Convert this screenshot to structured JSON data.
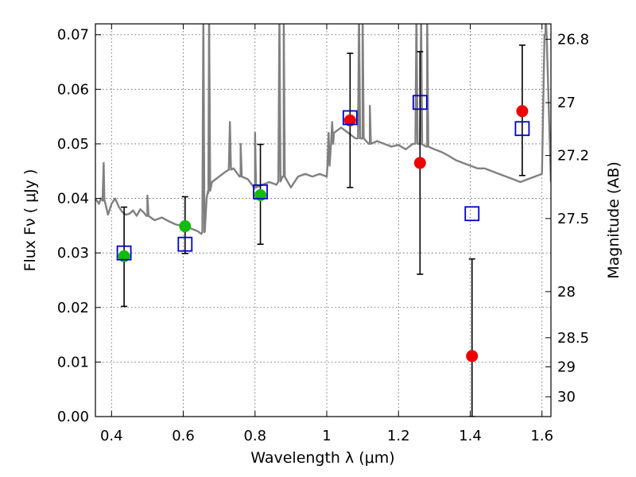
{
  "chart_data": {
    "type": "scatter",
    "xlabel": "Wavelength  λ (μm)",
    "ylabel": "Flux  Fν  ( μJy )",
    "ylabel_right": "Magnitude (AB)",
    "xlim": [
      0.355,
      1.625
    ],
    "ylim": [
      0.0,
      0.072
    ],
    "x_ticks": [
      0.4,
      0.6,
      0.8,
      1.0,
      1.2,
      1.4,
      1.6
    ],
    "x_tick_labels": [
      "0.4",
      "0.6",
      "0.8",
      "1",
      "1.2",
      "1.4",
      "1.6"
    ],
    "y_ticks": [
      0.0,
      0.01,
      0.02,
      0.03,
      0.04,
      0.05,
      0.06,
      0.07
    ],
    "y_tick_labels": [
      "0.00",
      "0.01",
      "0.02",
      "0.03",
      "0.04",
      "0.05",
      "0.06",
      "0.07"
    ],
    "right_ticks": [
      26.8,
      27,
      27.2,
      27.5,
      28,
      28.5,
      29,
      30
    ],
    "right_tick_labels": [
      "26.8",
      "27",
      "27.2",
      "27.5",
      "28",
      "28.5",
      "29",
      "30"
    ],
    "grid": true,
    "colors": {
      "model_line": "#808080",
      "green_points": "#11bb11",
      "red_points": "#ee0000",
      "open_squares": "#0000cc",
      "error_bars": "#000000"
    },
    "model_spectrum": {
      "x": [
        0.355,
        0.365,
        0.37,
        0.38,
        0.39,
        0.4,
        0.41,
        0.42,
        0.43,
        0.44,
        0.45,
        0.46,
        0.47,
        0.48,
        0.49,
        0.5,
        0.52,
        0.54,
        0.56,
        0.58,
        0.6,
        0.62,
        0.64,
        0.65,
        0.66,
        0.665,
        0.67,
        0.68,
        0.7,
        0.72,
        0.74,
        0.76,
        0.78,
        0.8,
        0.82,
        0.84,
        0.86,
        0.88,
        0.9,
        0.92,
        0.94,
        0.96,
        0.98,
        1.0,
        1.02,
        1.04,
        1.06,
        1.08,
        1.1,
        1.12,
        1.14,
        1.16,
        1.18,
        1.2,
        1.22,
        1.24,
        1.26,
        1.28,
        1.3,
        1.32,
        1.34,
        1.36,
        1.38,
        1.4,
        1.42,
        1.44,
        1.46,
        1.48,
        1.5,
        1.52,
        1.54,
        1.56,
        1.58,
        1.6,
        1.61,
        1.625
      ],
      "y": [
        0.04,
        0.039,
        0.04,
        0.0395,
        0.037,
        0.039,
        0.04,
        0.0385,
        0.0375,
        0.037,
        0.0372,
        0.0378,
        0.0368,
        0.038,
        0.0374,
        0.0368,
        0.036,
        0.0365,
        0.0358,
        0.0352,
        0.035,
        0.0345,
        0.034,
        0.0335,
        0.034,
        0.04,
        0.041,
        0.043,
        0.044,
        0.045,
        0.0455,
        0.044,
        0.0435,
        0.042,
        0.0425,
        0.043,
        0.0425,
        0.044,
        0.042,
        0.044,
        0.0445,
        0.044,
        0.0445,
        0.044,
        0.052,
        0.053,
        0.052,
        0.051,
        0.051,
        0.05,
        0.0505,
        0.05,
        0.0495,
        0.0498,
        0.049,
        0.05,
        0.05,
        0.0495,
        0.049,
        0.0485,
        0.0478,
        0.047,
        0.0465,
        0.046,
        0.0455,
        0.0455,
        0.045,
        0.0445,
        0.044,
        0.0435,
        0.043,
        0.0435,
        0.044,
        0.0445,
        0.07,
        0.043
      ]
    },
    "model_lines": [
      {
        "x": 0.378,
        "peak": 0.0465
      },
      {
        "x": 0.5,
        "peak": 0.0405
      },
      {
        "x": 0.656,
        "peak": 0.074
      },
      {
        "x": 0.672,
        "peak": 0.074
      },
      {
        "x": 0.73,
        "peak": 0.054
      },
      {
        "x": 0.76,
        "peak": 0.05
      },
      {
        "x": 0.8,
        "peak": 0.052
      },
      {
        "x": 0.868,
        "peak": 0.074
      },
      {
        "x": 0.88,
        "peak": 0.074
      },
      {
        "x": 1.005,
        "peak": 0.052
      },
      {
        "x": 1.015,
        "peak": 0.054
      },
      {
        "x": 1.09,
        "peak": 0.074
      },
      {
        "x": 1.1,
        "peak": 0.074
      },
      {
        "x": 1.12,
        "peak": 0.057
      },
      {
        "x": 1.25,
        "peak": 0.074
      },
      {
        "x": 1.263,
        "peak": 0.074
      },
      {
        "x": 1.28,
        "peak": 0.074
      },
      {
        "x": 1.61,
        "peak": 0.074
      }
    ],
    "series": [
      {
        "marker": "filled-circle-green",
        "x": [
          0.435,
          0.605,
          0.815
        ],
        "y": [
          0.0294,
          0.0349,
          0.0406
        ],
        "err_low": [
          0.0202,
          0.0299,
          0.0316
        ],
        "err_high": [
          0.0384,
          0.0403,
          0.0499
        ]
      },
      {
        "marker": "filled-circle-red",
        "x": [
          1.065,
          1.26,
          1.405,
          1.545
        ],
        "y": [
          0.0543,
          0.0465,
          0.0111,
          0.056
        ],
        "err_low": [
          0.042,
          0.0261,
          0.0,
          0.0442
        ],
        "err_high": [
          0.0666,
          0.0669,
          0.0289,
          0.0681
        ]
      },
      {
        "marker": "open-square-blue",
        "x": [
          0.435,
          0.605,
          0.815,
          1.065,
          1.26,
          1.405,
          1.545
        ],
        "y": [
          0.03,
          0.0316,
          0.0412,
          0.0548,
          0.0576,
          0.0372,
          0.0528
        ]
      }
    ]
  }
}
